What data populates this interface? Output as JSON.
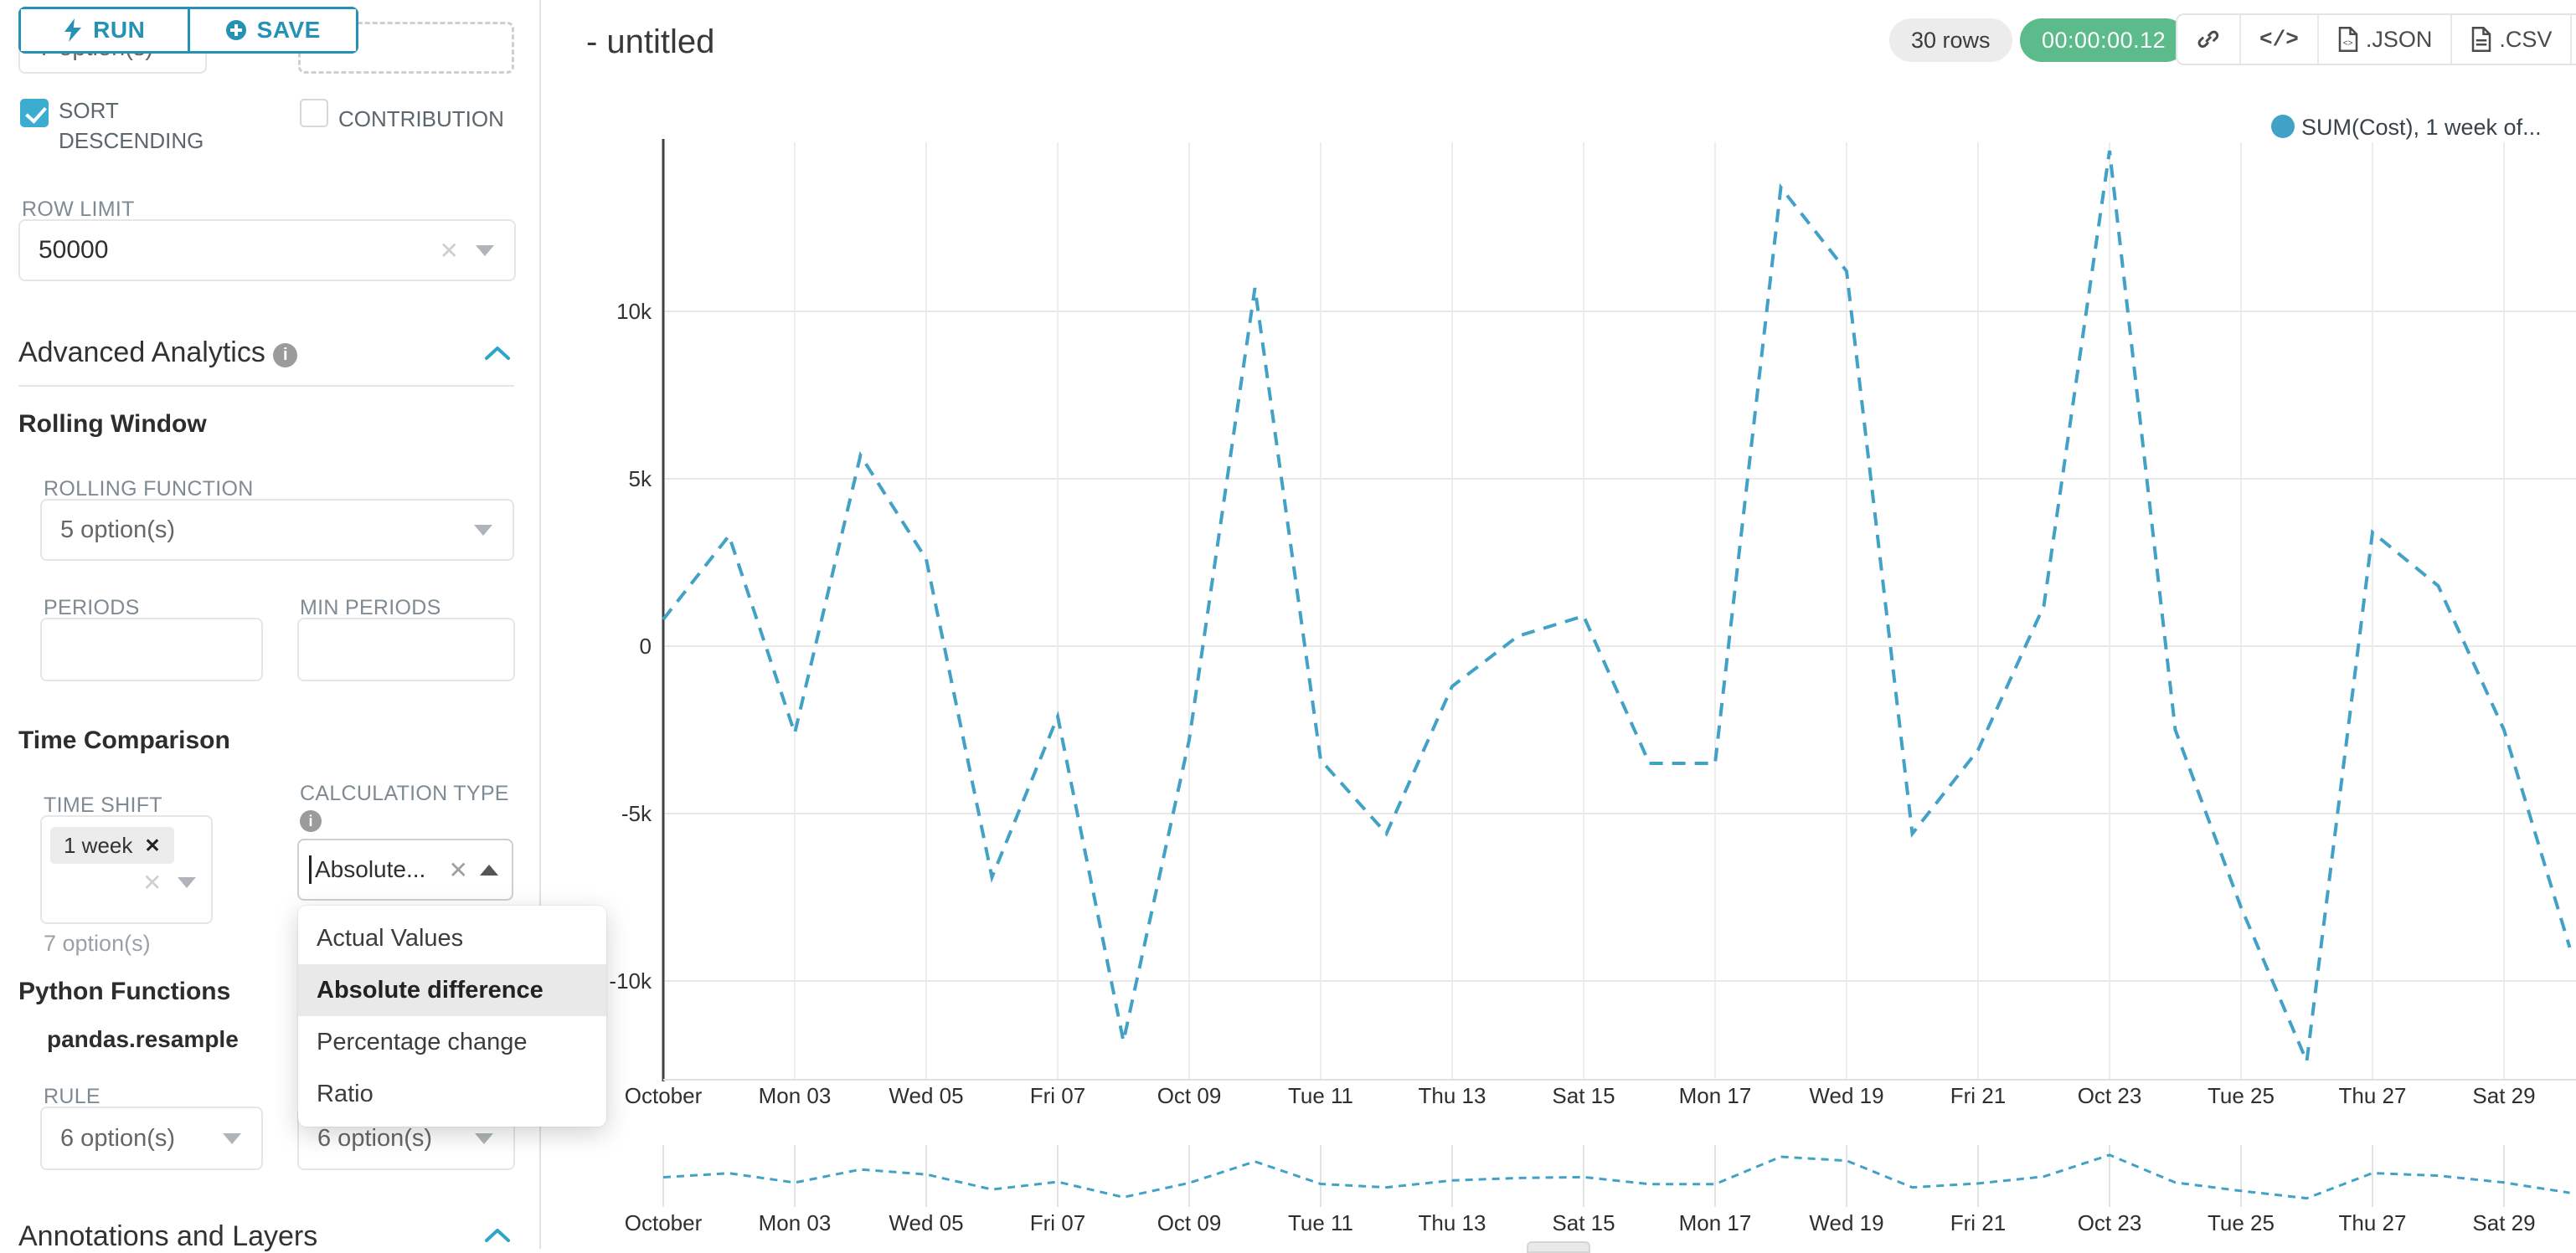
{
  "actions": {
    "run_label": "RUN",
    "save_label": "SAVE"
  },
  "panel": {
    "top_select_value": "7 option(s)",
    "sort_descending_label": "SORT DESCENDING",
    "sort_descending_checked": true,
    "contribution_label": "CONTRIBUTION",
    "contribution_checked": false,
    "row_limit_label": "ROW LIMIT",
    "row_limit_value": "50000",
    "advanced_analytics_title": "Advanced Analytics",
    "rolling_window_title": "Rolling Window",
    "rolling_function_label": "ROLLING FUNCTION",
    "rolling_function_placeholder": "5 option(s)",
    "periods_label": "PERIODS",
    "min_periods_label": "MIN PERIODS",
    "time_comparison_title": "Time Comparison",
    "time_shift_label": "TIME SHIFT",
    "time_shift_value": "1 week",
    "time_shift_helper": "7 option(s)",
    "calculation_type_label": "CALCULATION TYPE",
    "calculation_type_value": "Absolute...",
    "calculation_dropdown": {
      "items": [
        "Actual Values",
        "Absolute difference",
        "Percentage change",
        "Ratio"
      ],
      "selected": "Absolute difference"
    },
    "python_functions_title": "Python Functions",
    "python_function_name": "pandas.resample",
    "rule_label": "RULE",
    "rule_placeholder": "6 option(s)",
    "method_placeholder": "6 option(s)",
    "annotations_title": "Annotations and Layers"
  },
  "header": {
    "chart_title": "- untitled",
    "rows_badge": "30 rows",
    "timer_badge": "00:00:00.12",
    "export_json_label": ".JSON",
    "export_csv_label": ".CSV"
  },
  "chart_data": {
    "type": "line",
    "title": "",
    "legend": [
      "SUM(Cost), 1 week of..."
    ],
    "legend_position": "top-right",
    "grid": true,
    "line_style": "dashed",
    "line_color": "#42a1c6",
    "x_tick_labels": [
      "October",
      "Mon 03",
      "Wed 05",
      "Fri 07",
      "Oct 09",
      "Tue 11",
      "Thu 13",
      "Sat 15",
      "Mon 17",
      "Wed 19",
      "Fri 21",
      "Oct 23",
      "Tue 25",
      "Thu 27",
      "Sat 29"
    ],
    "y_tick_labels": [
      "10k",
      "5k",
      "0",
      "-5k",
      "-10k"
    ],
    "y_tick_values": [
      10000,
      5000,
      0,
      -5000,
      -10000
    ],
    "ylim": [
      -13000,
      15200
    ],
    "x": [
      "Oct 01",
      "Oct 02",
      "Oct 03",
      "Oct 04",
      "Oct 05",
      "Oct 06",
      "Oct 07",
      "Oct 08",
      "Oct 09",
      "Oct 10",
      "Oct 11",
      "Oct 12",
      "Oct 13",
      "Oct 14",
      "Oct 15",
      "Oct 16",
      "Oct 17",
      "Oct 18",
      "Oct 19",
      "Oct 20",
      "Oct 21",
      "Oct 22",
      "Oct 23",
      "Oct 24",
      "Oct 25",
      "Oct 26",
      "Oct 27",
      "Oct 28",
      "Oct 29",
      "Oct 30"
    ],
    "series": [
      {
        "name": "SUM(Cost), 1 week of...",
        "values": [
          800,
          3300,
          -2600,
          5700,
          2600,
          -6900,
          -2100,
          -11800,
          -2800,
          10700,
          -3400,
          -5600,
          -1200,
          300,
          900,
          -3500,
          -3500,
          13700,
          11200,
          -5600,
          -3100,
          1200,
          14800,
          -2500,
          -7800,
          -12400,
          3400,
          1800,
          -2500,
          -9000
        ]
      }
    ],
    "mini_chart": true
  },
  "colors": {
    "accent": "#2591b4",
    "line": "#42a1c6",
    "success": "#5bbb8a",
    "checkbox": "#3cadd0"
  }
}
